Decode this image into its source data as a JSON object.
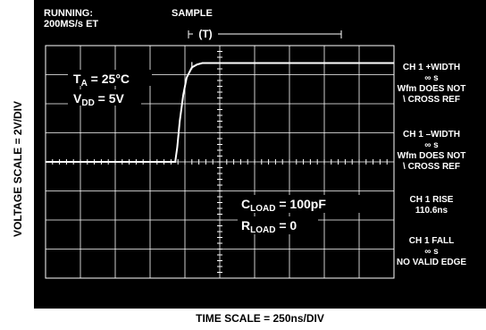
{
  "status": {
    "line1": "RUNNING:",
    "line2": "200MS/s ET"
  },
  "sample_label": "SAMPLE",
  "trigger_label": "(T)",
  "axis": {
    "ylabel": "VOLTAGE SCALE = 2V/DIV",
    "xlabel": "TIME SCALE = 250ns/DIV"
  },
  "conditions": {
    "ta_main": "T",
    "ta_sub": "A",
    "ta_value": " = 25°C",
    "vdd_main": "V",
    "vdd_sub": "DD",
    "vdd_value": " = 5V",
    "cload_main": "C",
    "cload_sub": "LOAD",
    "cload_value": " = 100pF",
    "rload_main": "R",
    "rload_sub": "LOAD",
    "rload_value": " = 0"
  },
  "measurements": [
    {
      "title": "CH 1 +WIDTH",
      "l2": "∞ s",
      "l3": "Wfm DOES NOT",
      "l4": "\\ CROSS REF"
    },
    {
      "title": "CH 1 –WIDTH",
      "l2": "∞ s",
      "l3": "Wfm DOES NOT",
      "l4": "\\ CROSS REF"
    },
    {
      "title": "CH 1 RISE",
      "l2": "110.6ns",
      "l3": "",
      "l4": ""
    },
    {
      "title": "CH 1 FALL",
      "l2": "∞ s",
      "l3": "NO VALID EDGE",
      "l4": ""
    }
  ],
  "chart_data": {
    "type": "line",
    "grid": true,
    "x_divisions": 10,
    "y_divisions": 8,
    "series": [
      {
        "x_div": [
          0,
          3.72,
          3.78,
          3.85,
          3.95,
          4.05,
          4.2,
          4.35,
          4.5,
          4.7,
          10
        ],
        "y_div": [
          4.0,
          4.0,
          4.5,
          5.4,
          6.3,
          6.9,
          7.25,
          7.35,
          7.4,
          7.4,
          7.4
        ]
      }
    ]
  },
  "colors": {
    "screen": "#000000",
    "trace": "#ffffff",
    "grid": "#ffffff"
  }
}
